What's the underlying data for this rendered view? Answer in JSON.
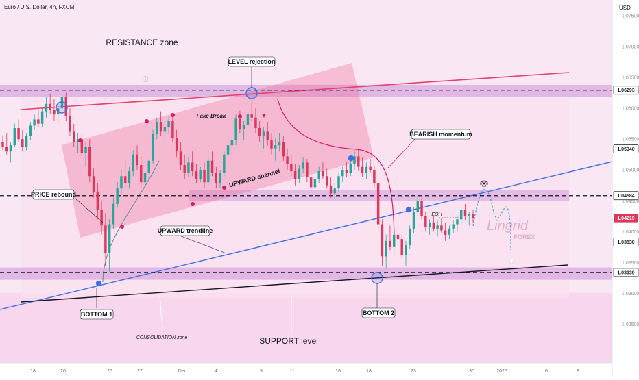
{
  "header": {
    "symbol_title": "Euro / U.S. Dollar, 4h, FXCM",
    "currency": "USD"
  },
  "colors": {
    "bull": "#26a69a",
    "bear": "#e0365a",
    "channel_fill": "#f06292",
    "resistance_band": "#ce93d8",
    "trendline_blue": "#3f6fe0",
    "trendline_red": "#e53f6a",
    "background_pink": "#fdeaf6",
    "last_price": "#e0365a"
  },
  "chart_data": {
    "type": "candlestick",
    "title": "Euro / U.S. Dollar, 4h, FXCM",
    "ylim": [
      1.0225,
      1.075
    ],
    "y_ticks": [
      "1.07500",
      "1.07000",
      "1.06500",
      "1.06000",
      "1.05500",
      "1.05000",
      "1.04500",
      "1.04000",
      "1.03500",
      "1.03000",
      "1.02500"
    ],
    "x_ticks": [
      "18",
      "20",
      "25",
      "27",
      "Dec",
      "4",
      "9",
      "11",
      "16",
      "18",
      "23",
      "30",
      "2025",
      "6",
      "8"
    ],
    "grid": false,
    "price_levels": [
      {
        "value": 1.06293,
        "label": "1.06293",
        "style": "level"
      },
      {
        "value": 1.0534,
        "label": "1.05340",
        "style": "level"
      },
      {
        "value": 1.04584,
        "label": "1.04584",
        "style": "level"
      },
      {
        "value": 1.04219,
        "label": "1.04219",
        "style": "last"
      },
      {
        "value": 1.0383,
        "label": "1.03830",
        "style": "level"
      },
      {
        "value": 1.03339,
        "label": "1.03339",
        "style": "level"
      }
    ],
    "annotations": {
      "resistance_zone": "RESISTANCE zone",
      "level_rejection": "LEVEL rejection",
      "fake_break": "Fake Break",
      "bearish_momentum": "BEARISH momentum",
      "upward_channel": "UPWARD channel",
      "price_rebound": "PRICE rebound",
      "upward_trendline": "UPWARD trendline",
      "bottom_1": "BOTTOM 1",
      "bottom_2": "BOTTOM 2",
      "consolidation_zone": "CONSOLIDATION zone",
      "support_level": "SUPPORT level",
      "eqh": "EQH",
      "watermark_brand": "Lingrid",
      "watermark_sub": "FOREX"
    },
    "candles": [
      [
        1.0545,
        1.0556,
        1.0532,
        1.0538
      ],
      [
        1.0538,
        1.056,
        1.0525,
        1.053
      ],
      [
        1.053,
        1.0545,
        1.0512,
        1.054
      ],
      [
        1.054,
        1.0575,
        1.0538,
        1.0568
      ],
      [
        1.0568,
        1.0582,
        1.0545,
        1.055
      ],
      [
        1.055,
        1.0565,
        1.053,
        1.0537
      ],
      [
        1.0537,
        1.056,
        1.0532,
        1.0555
      ],
      [
        1.0555,
        1.0578,
        1.0548,
        1.0572
      ],
      [
        1.0572,
        1.059,
        1.0565,
        1.0582
      ],
      [
        1.0582,
        1.0598,
        1.057,
        1.0575
      ],
      [
        1.0575,
        1.06,
        1.057,
        1.0595
      ],
      [
        1.0595,
        1.0618,
        1.0585,
        1.0607
      ],
      [
        1.0607,
        1.0624,
        1.059,
        1.0598
      ],
      [
        1.0598,
        1.0615,
        1.058,
        1.059
      ],
      [
        1.059,
        1.0608,
        1.0575,
        1.06
      ],
      [
        1.06,
        1.063,
        1.0595,
        1.0618
      ],
      [
        1.0618,
        1.0625,
        1.058,
        1.0588
      ],
      [
        1.0588,
        1.06,
        1.0555,
        1.0562
      ],
      [
        1.0562,
        1.0575,
        1.0538,
        1.0545
      ],
      [
        1.0545,
        1.056,
        1.0528,
        1.055
      ],
      [
        1.055,
        1.0558,
        1.052,
        1.0528
      ],
      [
        1.0528,
        1.0545,
        1.0505,
        1.0538
      ],
      [
        1.0538,
        1.055,
        1.048,
        1.049
      ],
      [
        1.049,
        1.0502,
        1.0455,
        1.0465
      ],
      [
        1.0465,
        1.0478,
        1.042,
        1.0435
      ],
      [
        1.0435,
        1.045,
        1.0395,
        1.041
      ],
      [
        1.041,
        1.043,
        1.0345,
        1.0365
      ],
      [
        1.0365,
        1.042,
        1.0335,
        1.0412
      ],
      [
        1.0412,
        1.0455,
        1.0405,
        1.0445
      ],
      [
        1.0445,
        1.048,
        1.044,
        1.047
      ],
      [
        1.047,
        1.05,
        1.046,
        1.049
      ],
      [
        1.049,
        1.0515,
        1.047,
        1.0478
      ],
      [
        1.0478,
        1.0505,
        1.047,
        1.0498
      ],
      [
        1.0498,
        1.0532,
        1.049,
        1.0525
      ],
      [
        1.0525,
        1.054,
        1.05,
        1.0508
      ],
      [
        1.0508,
        1.0522,
        1.047,
        1.048
      ],
      [
        1.048,
        1.05,
        1.0465,
        1.0495
      ],
      [
        1.0495,
        1.052,
        1.0485,
        1.0515
      ],
      [
        1.0515,
        1.0565,
        1.051,
        1.0558
      ],
      [
        1.0558,
        1.0585,
        1.055,
        1.0578
      ],
      [
        1.0578,
        1.0595,
        1.0555,
        1.0562
      ],
      [
        1.0562,
        1.0578,
        1.054,
        1.057
      ],
      [
        1.057,
        1.0588,
        1.056,
        1.058
      ],
      [
        1.058,
        1.059,
        1.0545,
        1.0552
      ],
      [
        1.0552,
        1.0565,
        1.052,
        1.053
      ],
      [
        1.053,
        1.0545,
        1.05,
        1.0508
      ],
      [
        1.0508,
        1.0525,
        1.0485,
        1.0495
      ],
      [
        1.0495,
        1.052,
        1.0488,
        1.0512
      ],
      [
        1.0512,
        1.053,
        1.049,
        1.0498
      ],
      [
        1.0498,
        1.051,
        1.0478,
        1.0485
      ],
      [
        1.0485,
        1.0505,
        1.048,
        1.05
      ],
      [
        1.05,
        1.0512,
        1.047,
        1.048
      ],
      [
        1.048,
        1.052,
        1.0476,
        1.0515
      ],
      [
        1.0515,
        1.053,
        1.049,
        1.0495
      ],
      [
        1.0495,
        1.0505,
        1.047,
        1.0478
      ],
      [
        1.0478,
        1.05,
        1.047,
        1.0495
      ],
      [
        1.0495,
        1.053,
        1.049,
        1.0525
      ],
      [
        1.0525,
        1.0545,
        1.051,
        1.054
      ],
      [
        1.054,
        1.056,
        1.052,
        1.0548
      ],
      [
        1.0548,
        1.059,
        1.054,
        1.0583
      ],
      [
        1.0583,
        1.0596,
        1.056,
        1.0566
      ],
      [
        1.0566,
        1.058,
        1.0548,
        1.0573
      ],
      [
        1.0573,
        1.0598,
        1.0565,
        1.059
      ],
      [
        1.059,
        1.0612,
        1.0578,
        1.0585
      ],
      [
        1.0585,
        1.06,
        1.056,
        1.0568
      ],
      [
        1.0568,
        1.058,
        1.0545,
        1.0555
      ],
      [
        1.0555,
        1.057,
        1.0535,
        1.0562
      ],
      [
        1.0562,
        1.0578,
        1.054,
        1.0548
      ],
      [
        1.0548,
        1.056,
        1.0525,
        1.0535
      ],
      [
        1.0535,
        1.0552,
        1.0515,
        1.054
      ],
      [
        1.054,
        1.056,
        1.053,
        1.0545
      ],
      [
        1.0545,
        1.0555,
        1.0515,
        1.0522
      ],
      [
        1.0522,
        1.0535,
        1.05,
        1.051
      ],
      [
        1.051,
        1.0525,
        1.049,
        1.0498
      ],
      [
        1.0498,
        1.051,
        1.0475,
        1.0485
      ],
      [
        1.0485,
        1.0508,
        1.0478,
        1.0502
      ],
      [
        1.0502,
        1.052,
        1.0495,
        1.0512
      ],
      [
        1.0512,
        1.0518,
        1.048,
        1.0488
      ],
      [
        1.0488,
        1.05,
        1.0465,
        1.0472
      ],
      [
        1.0472,
        1.049,
        1.0462,
        1.0485
      ],
      [
        1.0485,
        1.0505,
        1.0478,
        1.0498
      ],
      [
        1.0498,
        1.0512,
        1.0485,
        1.049
      ],
      [
        1.049,
        1.0502,
        1.047,
        1.0475
      ],
      [
        1.0475,
        1.0488,
        1.0455,
        1.0462
      ],
      [
        1.0462,
        1.0478,
        1.045,
        1.047
      ],
      [
        1.047,
        1.0495,
        1.0465,
        1.049
      ],
      [
        1.049,
        1.0505,
        1.048,
        1.05
      ],
      [
        1.05,
        1.0512,
        1.0488,
        1.0495
      ],
      [
        1.0495,
        1.0515,
        1.049,
        1.051
      ],
      [
        1.051,
        1.053,
        1.05,
        1.0522
      ],
      [
        1.0522,
        1.0535,
        1.0498,
        1.0505
      ],
      [
        1.0505,
        1.052,
        1.0488,
        1.0495
      ],
      [
        1.0495,
        1.0512,
        1.0485,
        1.0505
      ],
      [
        1.0505,
        1.0518,
        1.0495,
        1.05
      ],
      [
        1.05,
        1.0505,
        1.047,
        1.0478
      ],
      [
        1.0478,
        1.0485,
        1.04,
        1.0412
      ],
      [
        1.0412,
        1.042,
        1.0345,
        1.036
      ],
      [
        1.036,
        1.0395,
        1.034,
        1.0385
      ],
      [
        1.0385,
        1.041,
        1.037,
        1.0375
      ],
      [
        1.0375,
        1.0402,
        1.036,
        1.0395
      ],
      [
        1.0395,
        1.042,
        1.038,
        1.0388
      ],
      [
        1.0388,
        1.0395,
        1.0355,
        1.0362
      ],
      [
        1.0362,
        1.0385,
        1.0345,
        1.0378
      ],
      [
        1.0378,
        1.041,
        1.0372,
        1.0405
      ],
      [
        1.0405,
        1.044,
        1.0398,
        1.0432
      ],
      [
        1.0432,
        1.0458,
        1.0425,
        1.045
      ],
      [
        1.045,
        1.0455,
        1.042,
        1.0425
      ],
      [
        1.0425,
        1.0432,
        1.04,
        1.0408
      ],
      [
        1.0408,
        1.042,
        1.0395,
        1.0415
      ],
      [
        1.0415,
        1.0425,
        1.04,
        1.0405
      ],
      [
        1.0405,
        1.0418,
        1.0392,
        1.041
      ],
      [
        1.041,
        1.0422,
        1.0398,
        1.0402
      ],
      [
        1.0402,
        1.0415,
        1.0385,
        1.0395
      ],
      [
        1.0395,
        1.041,
        1.0388,
        1.0405
      ],
      [
        1.0405,
        1.0418,
        1.0398,
        1.0412
      ],
      [
        1.0412,
        1.0425,
        1.04,
        1.042
      ],
      [
        1.042,
        1.044,
        1.0412,
        1.0435
      ],
      [
        1.0435,
        1.0445,
        1.0418,
        1.0425
      ],
      [
        1.0425,
        1.0432,
        1.041,
        1.0428
      ],
      [
        1.0428,
        1.0435,
        1.0415,
        1.0422
      ]
    ]
  }
}
